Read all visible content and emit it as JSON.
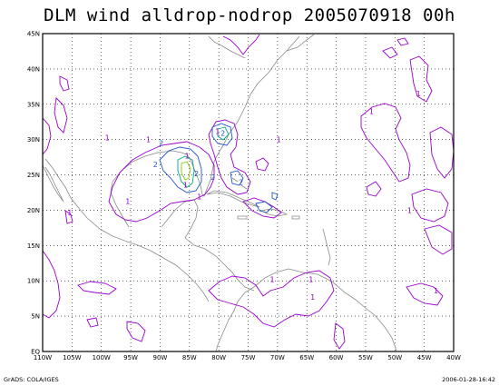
{
  "title": "DLM wind alldrop-nodrop 2005070918 00h",
  "footer_left": "GrADS: COLA/IGES",
  "footer_right": "2006-01-28-16:42",
  "colors": {
    "coast": "#8a8a8a",
    "grid": "#000000",
    "contour_1": "#9900cc",
    "contour_2": "#2255cc",
    "contour_3": "#00aa88",
    "contour_4": "#88cc00"
  },
  "chart_data": {
    "type": "contour-map",
    "title": "DLM wind alldrop-nodrop 2005070918 00h",
    "x_range": [
      -110,
      -40
    ],
    "y_range": [
      0,
      45
    ],
    "x_ticks": [
      "110W",
      "105W",
      "100W",
      "95W",
      "90W",
      "85W",
      "80W",
      "75W",
      "70W",
      "65W",
      "60W",
      "55W",
      "50W",
      "45W",
      "40W"
    ],
    "y_ticks": [
      "EQ",
      "5N",
      "10N",
      "15N",
      "20N",
      "25N",
      "30N",
      "35N",
      "40N",
      "45N"
    ],
    "grid": "dotted",
    "contour_labels": [
      {
        "text": "1",
        "lon": -92.0,
        "lat": 30.0,
        "level": 1
      },
      {
        "text": "2",
        "lon": -89.8,
        "lat": 29.5,
        "level": 2
      },
      {
        "text": "2",
        "lon": -90.8,
        "lat": 26.5,
        "level": 2
      },
      {
        "text": "1",
        "lon": -85.4,
        "lat": 27.7,
        "level": 1
      },
      {
        "text": "2",
        "lon": -83.8,
        "lat": 25.2,
        "level": 2
      },
      {
        "text": "1",
        "lon": -85.7,
        "lat": 23.6,
        "level": 1
      },
      {
        "text": "2",
        "lon": -81.0,
        "lat": 24.7,
        "level": 2
      },
      {
        "text": "1",
        "lon": -80.2,
        "lat": 31.2,
        "level": 1
      },
      {
        "text": "2",
        "lon": -79.3,
        "lat": 30.9,
        "level": 2
      },
      {
        "text": "2",
        "lon": -76.2,
        "lat": 24.0,
        "level": 2
      },
      {
        "text": "1",
        "lon": -83.3,
        "lat": 21.9,
        "level": 1
      },
      {
        "text": "1",
        "lon": -69.8,
        "lat": 30.0,
        "level": 1
      },
      {
        "text": "1",
        "lon": -95.5,
        "lat": 21.3,
        "level": 1
      },
      {
        "text": "1",
        "lon": -99.0,
        "lat": 30.3,
        "level": 1
      },
      {
        "text": "1",
        "lon": -105.4,
        "lat": 19.7,
        "level": 1
      },
      {
        "text": "1",
        "lon": -64.3,
        "lat": 10.2,
        "level": 1
      },
      {
        "text": "1",
        "lon": -70.9,
        "lat": 10.2,
        "level": 1
      },
      {
        "text": "1",
        "lon": -64.0,
        "lat": 7.7,
        "level": 1
      },
      {
        "text": "1",
        "lon": -54.0,
        "lat": 34.0,
        "level": 1
      },
      {
        "text": "1",
        "lon": -46.0,
        "lat": 36.5,
        "level": 1
      },
      {
        "text": "1",
        "lon": -47.5,
        "lat": 20.0,
        "level": 1
      },
      {
        "text": "1",
        "lon": -43.0,
        "lat": 8.6,
        "level": 1
      }
    ]
  }
}
